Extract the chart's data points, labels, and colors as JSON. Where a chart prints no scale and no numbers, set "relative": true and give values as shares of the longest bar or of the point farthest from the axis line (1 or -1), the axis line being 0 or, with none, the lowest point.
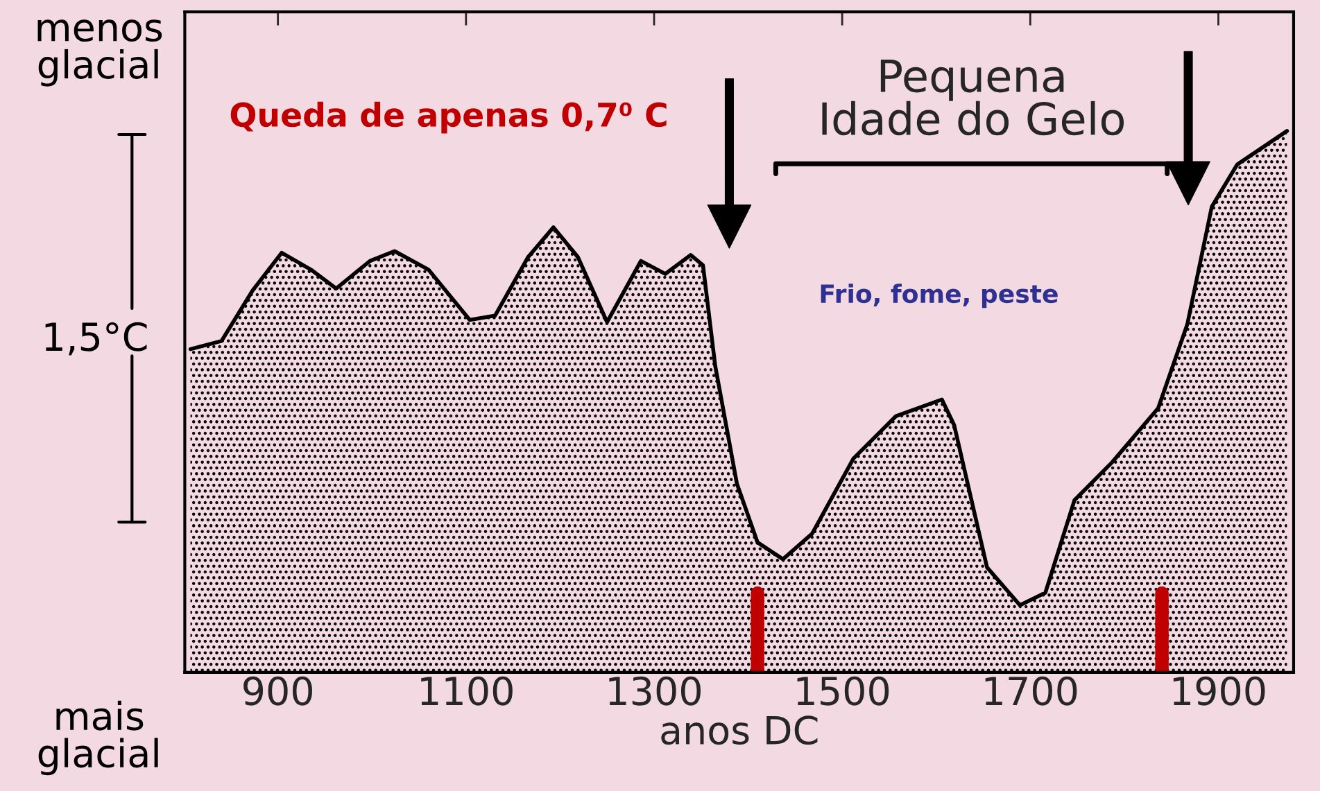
{
  "chart_data": {
    "type": "area",
    "relative": true,
    "xlabel": "anos DC",
    "x": [
      807,
      840,
      873,
      904,
      935,
      962,
      998,
      1024,
      1060,
      1104,
      1131,
      1166,
      1193,
      1219,
      1250,
      1286,
      1312,
      1339,
      1352,
      1365,
      1388,
      1410,
      1437,
      1468,
      1512,
      1557,
      1606,
      1619,
      1654,
      1689,
      1716,
      1747,
      1787,
      1836,
      1867,
      1893,
      1920,
      1973
    ],
    "series": [
      {
        "color": "#000000",
        "values": [
          0.597,
          0.612,
          0.705,
          0.775,
          0.744,
          0.709,
          0.76,
          0.778,
          0.744,
          0.651,
          0.659,
          0.767,
          0.822,
          0.767,
          0.647,
          0.76,
          0.736,
          0.771,
          0.752,
          0.566,
          0.349,
          0.24,
          0.209,
          0.256,
          0.395,
          0.473,
          0.504,
          0.457,
          0.194,
          0.124,
          0.147,
          0.318,
          0.388,
          0.488,
          0.643,
          0.86,
          0.938,
          1.0
        ]
      }
    ],
    "xlim": [
      801,
      1980
    ],
    "xticks": [
      900,
      1100,
      1300,
      1500,
      1700,
      1900
    ],
    "grid": false,
    "line_style": "solid",
    "marker": "none",
    "ref_lines": [
      {
        "axis": "x",
        "value": 1410,
        "color": "#c00000"
      },
      {
        "axis": "x",
        "value": 1840,
        "color": "#c00000"
      }
    ],
    "annotations": [
      "menos\nglacial",
      "1,5°C",
      "mais\nglacial",
      "Queda de apenas 0,7⁰ C",
      "Frio, fome, peste",
      "Pequena\nIdade do Gelo"
    ]
  }
}
